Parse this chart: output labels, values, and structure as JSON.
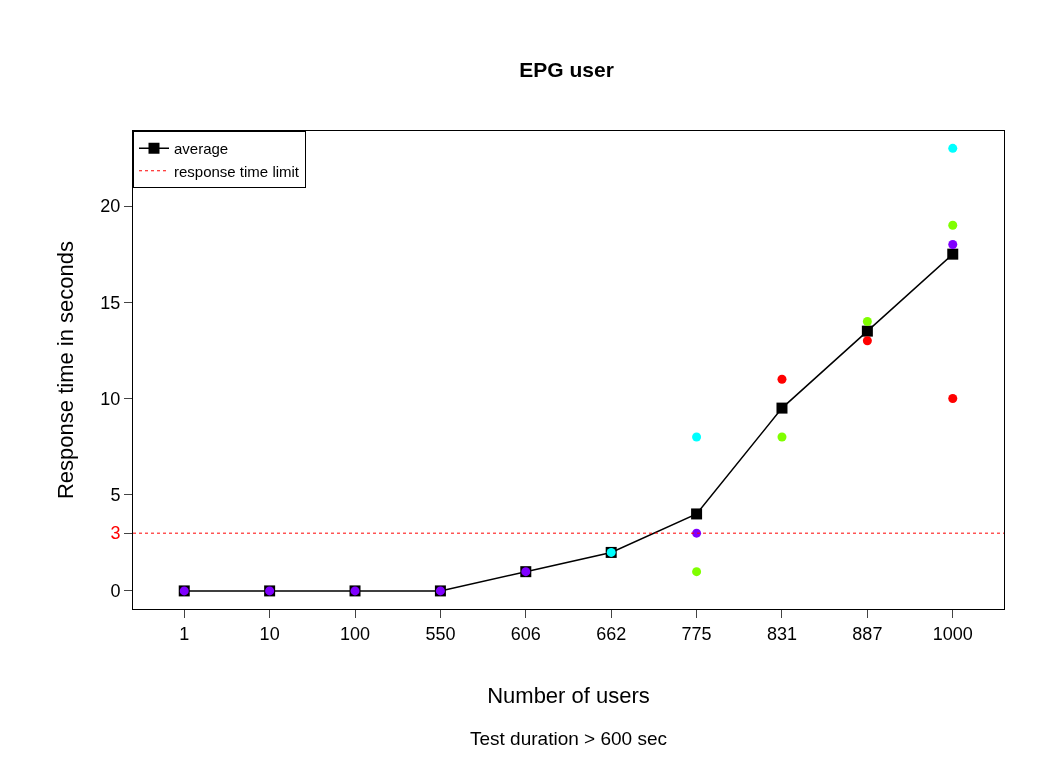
{
  "chart_data": {
    "type": "line",
    "title": "EPG user",
    "xlabel": "Number of users",
    "ylabel": "Response time in seconds",
    "annotations": [
      "Test duration > 600 sec"
    ],
    "categories": [
      "1",
      "10",
      "100",
      "550",
      "606",
      "662",
      "775",
      "831",
      "887",
      "1000"
    ],
    "series": [
      {
        "name": "average",
        "marker": "square",
        "color": "#000000",
        "values": [
          0,
          0,
          0,
          0,
          1,
          2,
          4,
          9.5,
          13.5,
          17.5
        ]
      },
      {
        "type": "scatter",
        "marker": "circle",
        "color": "#ff0000",
        "values": [
          null,
          null,
          null,
          null,
          null,
          null,
          null,
          11,
          13,
          10
        ]
      },
      {
        "type": "scatter",
        "marker": "circle",
        "color": "#80ff00",
        "values": [
          null,
          null,
          null,
          null,
          null,
          null,
          1,
          8,
          14,
          19
        ]
      },
      {
        "type": "scatter",
        "marker": "circle",
        "color": "#00ffff",
        "values": [
          null,
          null,
          null,
          null,
          null,
          2,
          8,
          null,
          null,
          23
        ]
      },
      {
        "type": "scatter",
        "marker": "circle",
        "color": "#8000ff",
        "values": [
          0,
          0,
          0,
          0,
          1,
          null,
          3,
          null,
          null,
          18
        ]
      }
    ],
    "ref_lines": [
      {
        "axis": "y",
        "value": 3,
        "label": "response time limit",
        "color": "#ff0000",
        "line_style": "dotted"
      }
    ],
    "ylim": [
      -0.94,
      23.9
    ],
    "yticks": [
      0,
      3,
      5,
      10,
      15,
      20
    ],
    "legend": "top left"
  }
}
